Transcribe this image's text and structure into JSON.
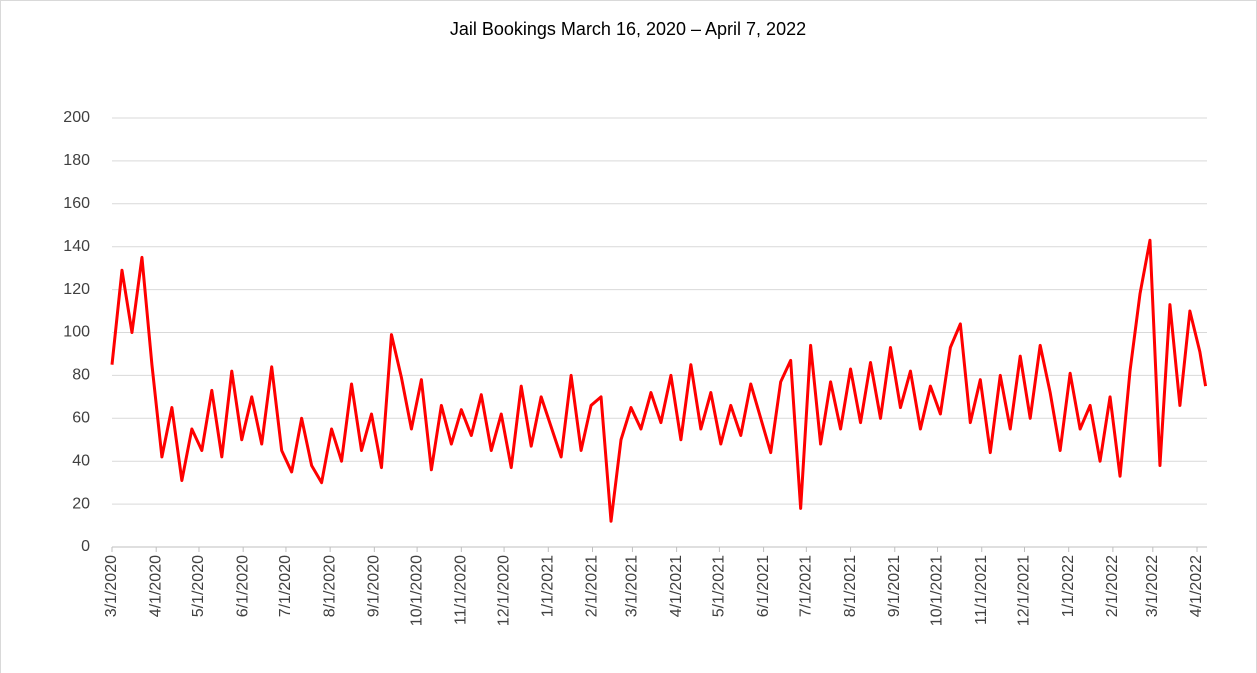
{
  "chart_data": {
    "type": "line",
    "title": "Jail Bookings March 16, 2020 – April 7, 2022",
    "x": [
      "2020-03-01",
      "2020-03-08",
      "2020-03-15",
      "2020-03-22",
      "2020-03-29",
      "2020-04-05",
      "2020-04-12",
      "2020-04-19",
      "2020-04-26",
      "2020-05-03",
      "2020-05-10",
      "2020-05-17",
      "2020-05-24",
      "2020-05-31",
      "2020-06-07",
      "2020-06-14",
      "2020-06-21",
      "2020-06-28",
      "2020-07-05",
      "2020-07-12",
      "2020-07-19",
      "2020-07-26",
      "2020-08-02",
      "2020-08-09",
      "2020-08-16",
      "2020-08-23",
      "2020-08-30",
      "2020-09-06",
      "2020-09-13",
      "2020-09-20",
      "2020-09-27",
      "2020-10-04",
      "2020-10-11",
      "2020-10-18",
      "2020-10-25",
      "2020-11-01",
      "2020-11-08",
      "2020-11-15",
      "2020-11-22",
      "2020-11-29",
      "2020-12-06",
      "2020-12-13",
      "2020-12-20",
      "2020-12-27",
      "2021-01-03",
      "2021-01-10",
      "2021-01-17",
      "2021-01-24",
      "2021-01-31",
      "2021-02-07",
      "2021-02-14",
      "2021-02-21",
      "2021-02-28",
      "2021-03-07",
      "2021-03-14",
      "2021-03-21",
      "2021-03-28",
      "2021-04-04",
      "2021-04-11",
      "2021-04-18",
      "2021-04-25",
      "2021-05-02",
      "2021-05-09",
      "2021-05-16",
      "2021-05-23",
      "2021-05-30",
      "2021-06-06",
      "2021-06-13",
      "2021-06-20",
      "2021-06-27",
      "2021-07-04",
      "2021-07-11",
      "2021-07-18",
      "2021-07-25",
      "2021-08-01",
      "2021-08-08",
      "2021-08-15",
      "2021-08-22",
      "2021-08-29",
      "2021-09-05",
      "2021-09-12",
      "2021-09-19",
      "2021-09-26",
      "2021-10-03",
      "2021-10-10",
      "2021-10-17",
      "2021-10-24",
      "2021-10-31",
      "2021-11-07",
      "2021-11-14",
      "2021-11-21",
      "2021-11-28",
      "2021-12-05",
      "2021-12-12",
      "2021-12-19",
      "2021-12-26",
      "2022-01-02",
      "2022-01-09",
      "2022-01-16",
      "2022-01-23",
      "2022-01-30",
      "2022-02-06",
      "2022-02-13",
      "2022-02-20",
      "2022-02-27",
      "2022-03-06",
      "2022-03-13",
      "2022-03-20",
      "2022-03-27",
      "2022-04-03",
      "2022-04-07"
    ],
    "series": [
      {
        "name": "Bookings",
        "color": "#ff0000",
        "values": [
          85,
          129,
          100,
          135,
          85,
          42,
          65,
          31,
          55,
          45,
          73,
          42,
          82,
          50,
          70,
          48,
          84,
          45,
          35,
          60,
          38,
          30,
          55,
          40,
          76,
          45,
          62,
          37,
          99,
          79,
          55,
          78,
          36,
          66,
          48,
          64,
          52,
          71,
          45,
          62,
          37,
          75,
          47,
          70,
          56,
          42,
          80,
          45,
          66,
          70,
          12,
          50,
          65,
          55,
          72,
          58,
          80,
          50,
          85,
          55,
          72,
          48,
          66,
          52,
          76,
          60,
          44,
          77,
          87,
          18,
          94,
          48,
          77,
          55,
          83,
          58,
          86,
          60,
          93,
          65,
          82,
          55,
          75,
          62,
          93,
          104,
          58,
          78,
          44,
          80,
          55,
          89,
          60,
          94,
          72,
          45,
          81,
          55,
          66,
          40,
          70,
          33,
          82,
          118,
          143,
          38,
          113,
          66,
          110,
          91,
          75
        ]
      }
    ],
    "xlim": [
      "2020-03-01",
      "2022-04-08"
    ],
    "xticks": [
      {
        "value": "2020-03-01",
        "label": "3/1/2020"
      },
      {
        "value": "2020-04-01",
        "label": "4/1/2020"
      },
      {
        "value": "2020-05-01",
        "label": "5/1/2020"
      },
      {
        "value": "2020-06-01",
        "label": "6/1/2020"
      },
      {
        "value": "2020-07-01",
        "label": "7/1/2020"
      },
      {
        "value": "2020-08-01",
        "label": "8/1/2020"
      },
      {
        "value": "2020-09-01",
        "label": "9/1/2020"
      },
      {
        "value": "2020-10-01",
        "label": "10/1/2020"
      },
      {
        "value": "2020-11-01",
        "label": "11/1/2020"
      },
      {
        "value": "2020-12-01",
        "label": "12/1/2020"
      },
      {
        "value": "2021-01-01",
        "label": "1/1/2021"
      },
      {
        "value": "2021-02-01",
        "label": "2/1/2021"
      },
      {
        "value": "2021-03-01",
        "label": "3/1/2021"
      },
      {
        "value": "2021-04-01",
        "label": "4/1/2021"
      },
      {
        "value": "2021-05-01",
        "label": "5/1/2021"
      },
      {
        "value": "2021-06-01",
        "label": "6/1/2021"
      },
      {
        "value": "2021-07-01",
        "label": "7/1/2021"
      },
      {
        "value": "2021-08-01",
        "label": "8/1/2021"
      },
      {
        "value": "2021-09-01",
        "label": "9/1/2021"
      },
      {
        "value": "2021-10-01",
        "label": "10/1/2021"
      },
      {
        "value": "2021-11-01",
        "label": "11/1/2021"
      },
      {
        "value": "2021-12-01",
        "label": "12/1/2021"
      },
      {
        "value": "2022-01-01",
        "label": "1/1/2022"
      },
      {
        "value": "2022-02-01",
        "label": "2/1/2022"
      },
      {
        "value": "2022-03-01",
        "label": "3/1/2022"
      },
      {
        "value": "2022-04-01",
        "label": "4/1/2022"
      }
    ],
    "ylim": [
      0,
      200
    ],
    "yticks": [
      0,
      20,
      40,
      60,
      80,
      100,
      120,
      140,
      160,
      180,
      200
    ],
    "grid": true
  }
}
